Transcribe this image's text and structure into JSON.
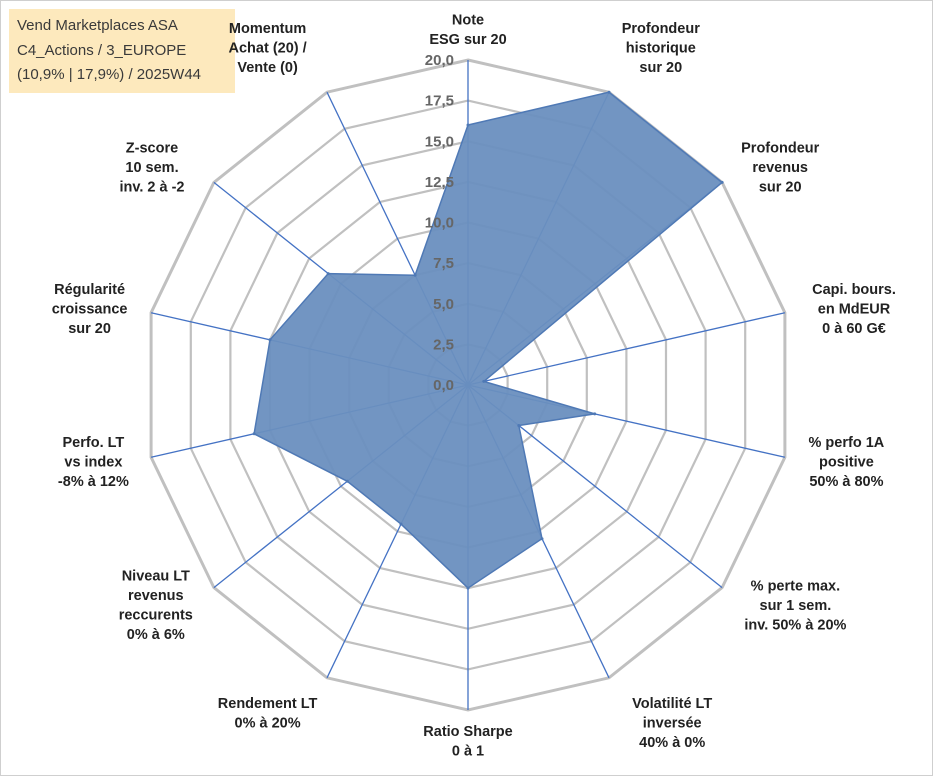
{
  "title_box": {
    "line1": "Vend Marketplaces ASA",
    "line2": "C4_Actions / 3_EUROPE",
    "line3": "(10,9% | 17,9%) / 2025W44"
  },
  "colors": {
    "grid": "#c0c0c0",
    "spoke": "#4472c4",
    "fill": "#6a8fbf",
    "stroke": "#4f79b5",
    "title_bg": "#fde9bd"
  },
  "chart_data": {
    "type": "radar",
    "rmin": 0,
    "rmax": 20,
    "step": 2.5,
    "tick_labels": [
      "0,0",
      "2,5",
      "5,0",
      "7,5",
      "10,0",
      "12,5",
      "15,0",
      "17,5",
      "20,0"
    ],
    "axes": [
      [
        "Note",
        "ESG sur 20"
      ],
      [
        "Profondeur",
        "historique",
        "sur 20"
      ],
      [
        "Profondeur",
        "revenus",
        "sur 20"
      ],
      [
        "Capi. bours.",
        "en MdEUR",
        "0 à 60 G€"
      ],
      [
        "% perfo 1A",
        "positive",
        "50% à 80%"
      ],
      [
        "% perte max.",
        "sur 1 sem.",
        "inv. 50% à 20%"
      ],
      [
        "Volatilité LT",
        "inversée",
        "40% à 0%"
      ],
      [
        "Ratio Sharpe",
        "0 à 1"
      ],
      [
        "Rendement LT",
        "0% à 20%"
      ],
      [
        "Niveau LT",
        "revenus",
        "reccurents",
        "0% à 6%"
      ],
      [
        "Perfo. LT",
        "vs index",
        "-8% à 12%"
      ],
      [
        "Régularité",
        "croissance",
        "sur 20"
      ],
      [
        "Z-score",
        "10 sem.",
        "inv. 2 à -2"
      ],
      [
        "Momentum",
        "Achat (20) /",
        "Vente (0)"
      ]
    ],
    "values": [
      16,
      20,
      20,
      1,
      8,
      4,
      10.5,
      12.5,
      9.5,
      9.5,
      13.5,
      12.5,
      11,
      7.5
    ],
    "grid": true,
    "legend": "none"
  }
}
